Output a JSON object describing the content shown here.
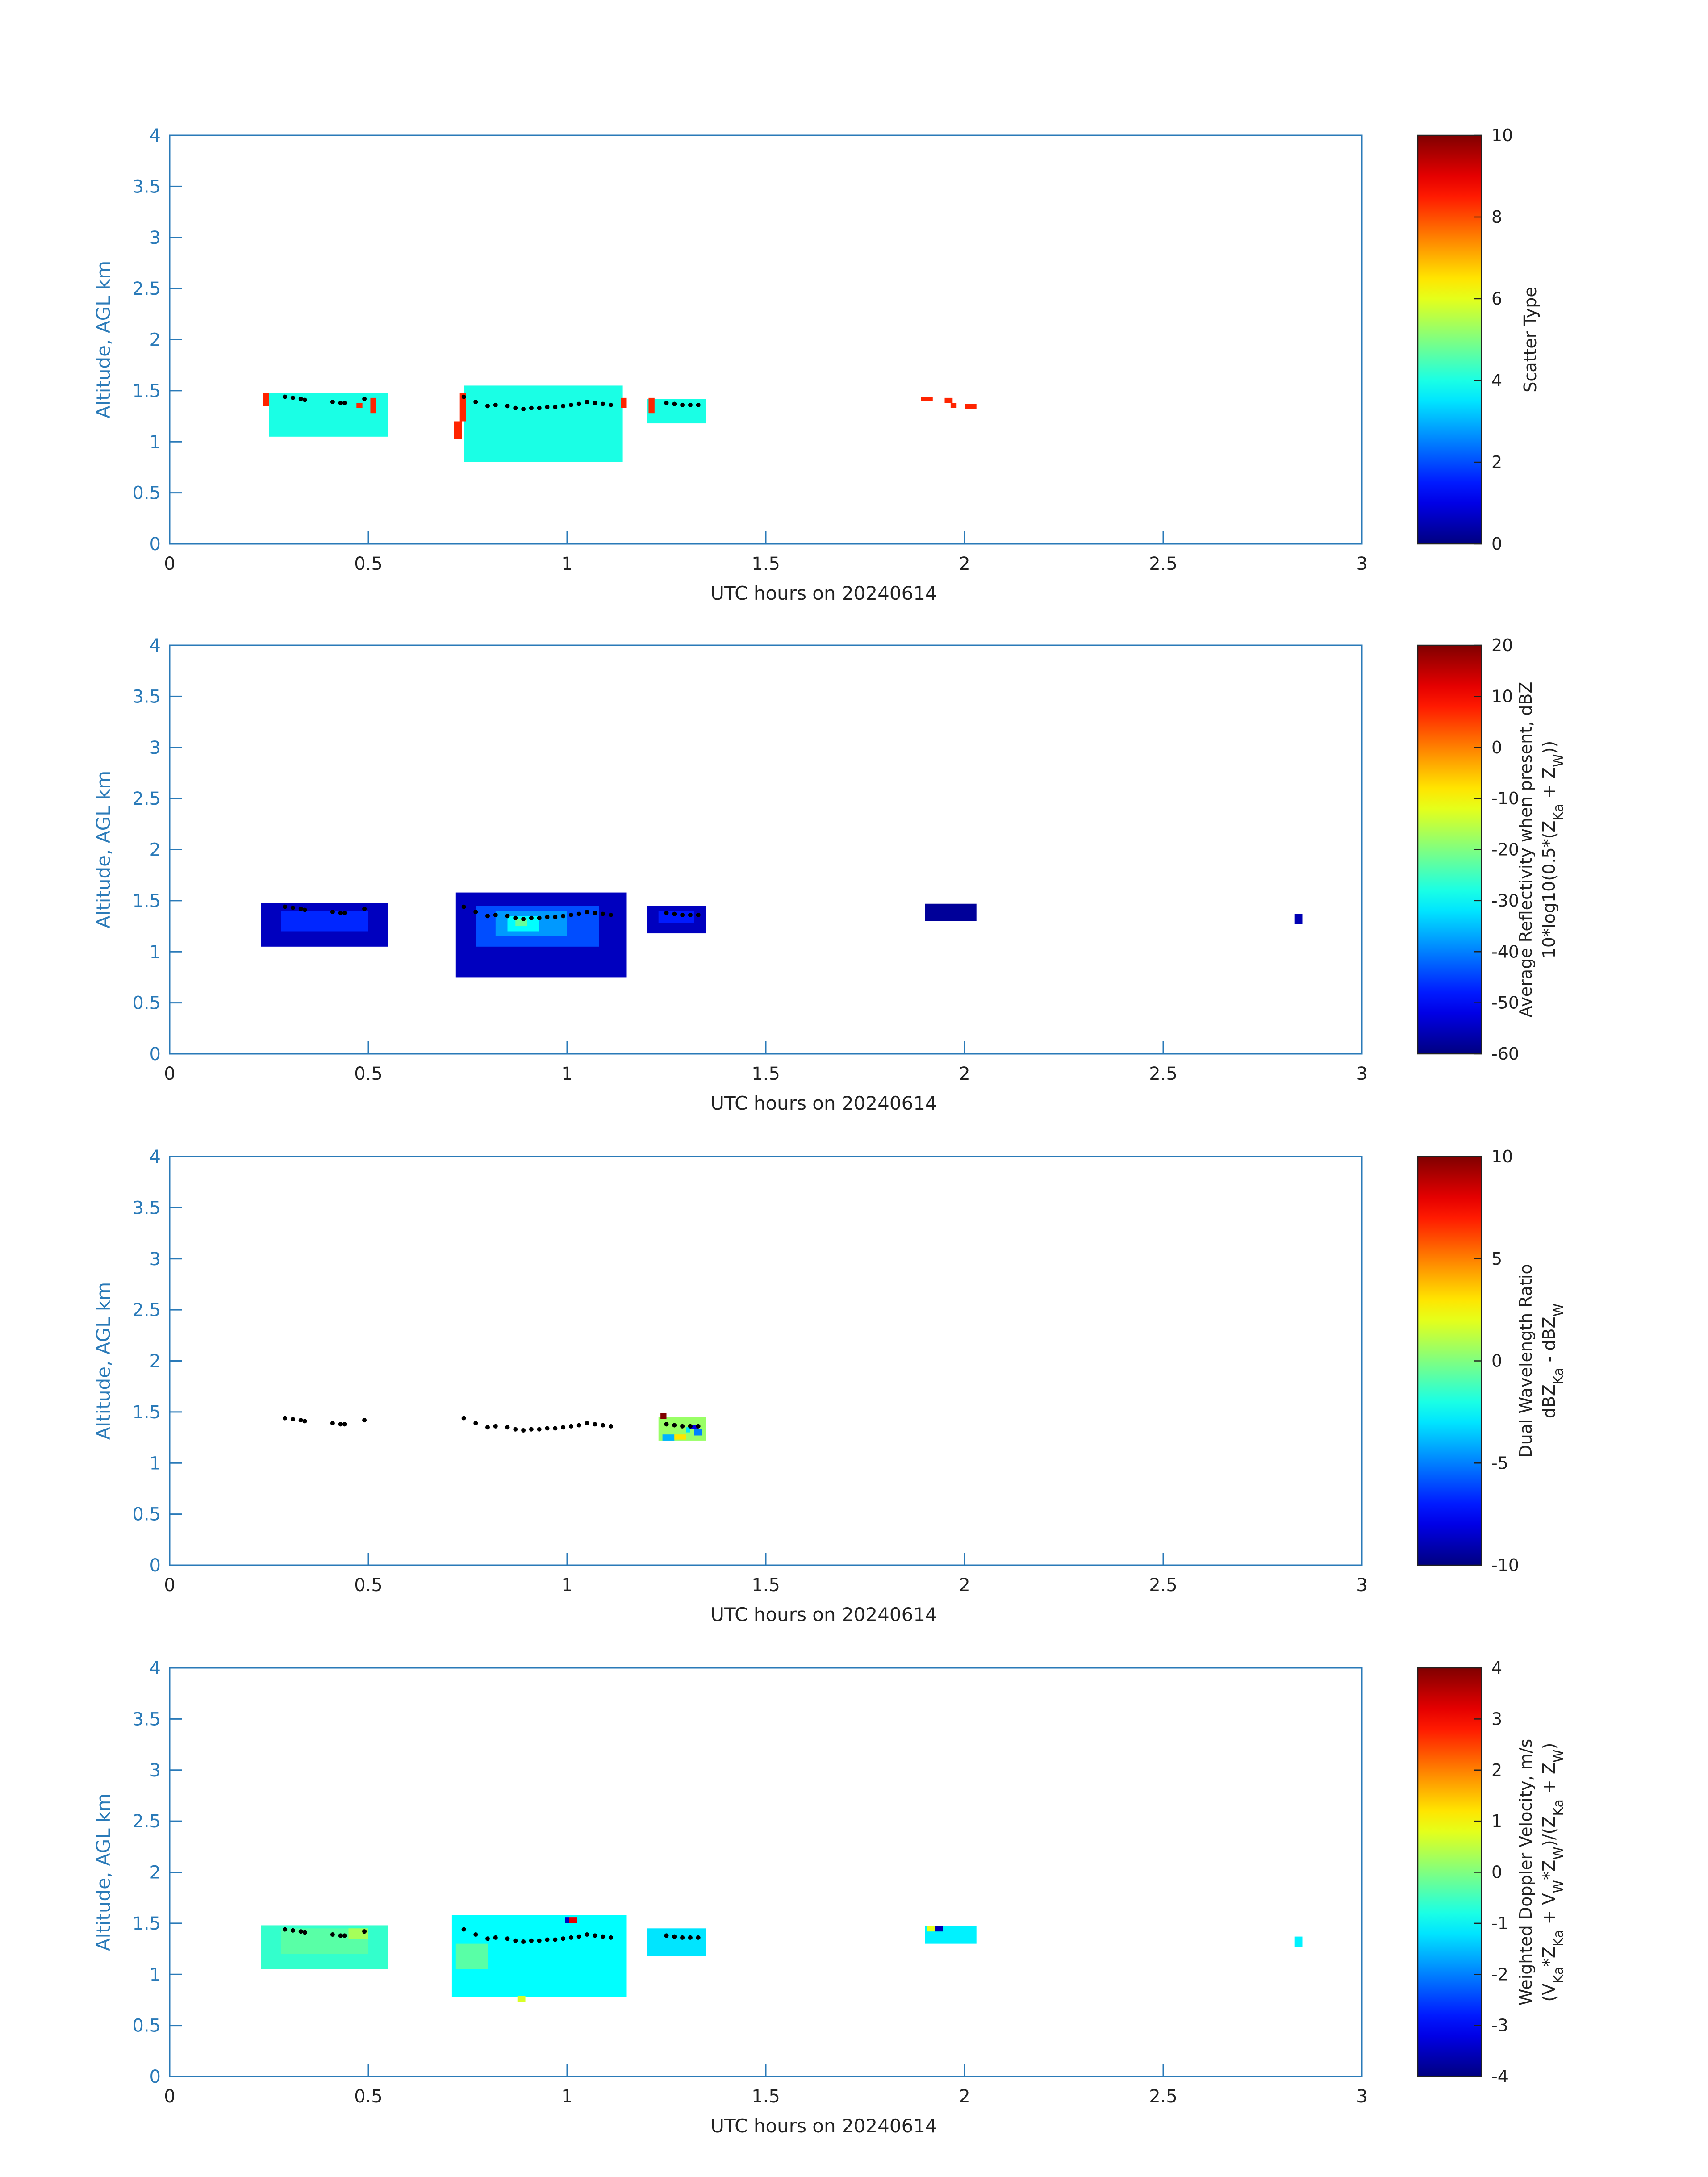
{
  "chart_data": [
    {
      "type": "heatmap",
      "xlabel": "UTC hours on 20240614",
      "ylabel": "Altitude, AGL km",
      "xlim": [
        0,
        3
      ],
      "ylim": [
        0,
        4
      ],
      "xticks": [
        "0",
        "0.5",
        "1",
        "1.5",
        "2",
        "2.5",
        "3"
      ],
      "yticks": [
        "0",
        "0.5",
        "1",
        "1.5",
        "2",
        "2.5",
        "3",
        "3.5",
        "4"
      ],
      "colorbar": {
        "label_lines": [
          "Scatter Type"
        ],
        "range": [
          0,
          10
        ],
        "ticks": [
          "0",
          "2",
          "4",
          "6",
          "8",
          "10"
        ]
      },
      "regions": [
        {
          "x": [
            0.25,
            0.55
          ],
          "y": [
            1.05,
            1.48
          ],
          "value": 4,
          "comment_color": "#2ef5d8"
        },
        {
          "x": [
            0.74,
            1.14
          ],
          "y": [
            0.8,
            1.55
          ],
          "value": 4
        },
        {
          "x": [
            1.2,
            1.35
          ],
          "y": [
            1.18,
            1.42
          ],
          "value": 4
        }
      ],
      "cells": [
        {
          "x": [
            0.235,
            0.25
          ],
          "y": [
            1.35,
            1.48
          ],
          "value": 8.4
        },
        {
          "x": [
            0.715,
            0.735
          ],
          "y": [
            1.03,
            1.2
          ],
          "value": 8.4
        },
        {
          "x": [
            0.73,
            0.745
          ],
          "y": [
            1.2,
            1.48
          ],
          "value": 8.4
        },
        {
          "x": [
            0.47,
            0.485
          ],
          "y": [
            1.33,
            1.38
          ],
          "value": 8.4
        },
        {
          "x": [
            0.505,
            0.52
          ],
          "y": [
            1.28,
            1.43
          ],
          "value": 8.4
        },
        {
          "x": [
            1.135,
            1.15
          ],
          "y": [
            1.33,
            1.43
          ],
          "value": 8.4
        },
        {
          "x": [
            1.205,
            1.22
          ],
          "y": [
            1.28,
            1.43
          ],
          "value": 8.4
        },
        {
          "x": [
            1.89,
            1.92
          ],
          "y": [
            1.4,
            1.44
          ],
          "value": 8.4
        },
        {
          "x": [
            1.95,
            1.97
          ],
          "y": [
            1.38,
            1.43
          ],
          "value": 8.4
        },
        {
          "x": [
            1.965,
            1.98
          ],
          "y": [
            1.33,
            1.38
          ],
          "value": 8.4
        },
        {
          "x": [
            2.0,
            2.03
          ],
          "y": [
            1.32,
            1.37
          ],
          "value": 8.4
        }
      ],
      "cloud_base_dots": [
        [
          0.29,
          1.44
        ],
        [
          0.31,
          1.43
        ],
        [
          0.33,
          1.42
        ],
        [
          0.34,
          1.41
        ],
        [
          0.41,
          1.39
        ],
        [
          0.43,
          1.38
        ],
        [
          0.44,
          1.38
        ],
        [
          0.49,
          1.42
        ],
        [
          0.74,
          1.44
        ],
        [
          0.77,
          1.39
        ],
        [
          0.8,
          1.35
        ],
        [
          0.82,
          1.36
        ],
        [
          0.85,
          1.35
        ],
        [
          0.87,
          1.33
        ],
        [
          0.89,
          1.32
        ],
        [
          0.91,
          1.33
        ],
        [
          0.93,
          1.33
        ],
        [
          0.95,
          1.34
        ],
        [
          0.97,
          1.34
        ],
        [
          0.99,
          1.35
        ],
        [
          1.01,
          1.36
        ],
        [
          1.03,
          1.37
        ],
        [
          1.05,
          1.39
        ],
        [
          1.07,
          1.38
        ],
        [
          1.09,
          1.37
        ],
        [
          1.11,
          1.36
        ],
        [
          1.25,
          1.38
        ],
        [
          1.27,
          1.37
        ],
        [
          1.29,
          1.36
        ],
        [
          1.31,
          1.36
        ],
        [
          1.33,
          1.36
        ]
      ]
    },
    {
      "type": "heatmap",
      "xlabel": "UTC hours on 20240614",
      "ylabel": "Altitude, AGL km",
      "xlim": [
        0,
        3
      ],
      "ylim": [
        0,
        4
      ],
      "xticks": [
        "0",
        "0.5",
        "1",
        "1.5",
        "2",
        "2.5",
        "3"
      ],
      "yticks": [
        "0",
        "0.5",
        "1",
        "1.5",
        "2",
        "2.5",
        "3",
        "3.5",
        "4"
      ],
      "colorbar": {
        "label_lines": [
          "Average Reflectivity when present, dBZ",
          "10*log10(0.5*(Z_Ka + Z_W))"
        ],
        "range": [
          -60,
          20
        ],
        "ticks": [
          "-60",
          "-50",
          "-40",
          "-30",
          "-20",
          "-10",
          "0",
          "10",
          "20"
        ]
      },
      "regions": [
        {
          "x": [
            0.23,
            0.55
          ],
          "y": [
            1.05,
            1.48
          ],
          "value": -55
        },
        {
          "x": [
            0.72,
            1.15
          ],
          "y": [
            0.75,
            1.58
          ],
          "value": -55
        },
        {
          "x": [
            1.2,
            1.35
          ],
          "y": [
            1.18,
            1.45
          ],
          "value": -55
        },
        {
          "x": [
            1.9,
            2.03
          ],
          "y": [
            1.3,
            1.47
          ],
          "value": -58
        },
        {
          "x": [
            2.83,
            2.85
          ],
          "y": [
            1.27,
            1.37
          ],
          "value": -56
        }
      ],
      "cells": [
        {
          "x": [
            0.28,
            0.5
          ],
          "y": [
            1.2,
            1.4
          ],
          "value": -47
        },
        {
          "x": [
            0.77,
            1.08
          ],
          "y": [
            1.05,
            1.45
          ],
          "value": -44
        },
        {
          "x": [
            0.82,
            1.0
          ],
          "y": [
            1.15,
            1.4
          ],
          "value": -38
        },
        {
          "x": [
            0.85,
            0.93
          ],
          "y": [
            1.2,
            1.35
          ],
          "value": -30
        },
        {
          "x": [
            0.87,
            0.9
          ],
          "y": [
            1.25,
            1.32
          ],
          "value": -22
        },
        {
          "x": [
            1.23,
            1.32
          ],
          "y": [
            1.28,
            1.4
          ],
          "value": -48
        }
      ],
      "cloud_base_dots": [
        [
          0.29,
          1.44
        ],
        [
          0.31,
          1.43
        ],
        [
          0.33,
          1.42
        ],
        [
          0.34,
          1.41
        ],
        [
          0.41,
          1.39
        ],
        [
          0.43,
          1.38
        ],
        [
          0.44,
          1.38
        ],
        [
          0.49,
          1.42
        ],
        [
          0.74,
          1.44
        ],
        [
          0.77,
          1.39
        ],
        [
          0.8,
          1.35
        ],
        [
          0.82,
          1.36
        ],
        [
          0.85,
          1.35
        ],
        [
          0.87,
          1.33
        ],
        [
          0.89,
          1.32
        ],
        [
          0.91,
          1.33
        ],
        [
          0.93,
          1.33
        ],
        [
          0.95,
          1.34
        ],
        [
          0.97,
          1.34
        ],
        [
          0.99,
          1.35
        ],
        [
          1.01,
          1.36
        ],
        [
          1.03,
          1.37
        ],
        [
          1.05,
          1.39
        ],
        [
          1.07,
          1.38
        ],
        [
          1.09,
          1.37
        ],
        [
          1.11,
          1.36
        ],
        [
          1.25,
          1.38
        ],
        [
          1.27,
          1.37
        ],
        [
          1.29,
          1.36
        ],
        [
          1.31,
          1.36
        ],
        [
          1.33,
          1.36
        ]
      ]
    },
    {
      "type": "heatmap",
      "xlabel": "UTC hours on 20240614",
      "ylabel": "Altitude, AGL km",
      "xlim": [
        0,
        3
      ],
      "ylim": [
        0,
        4
      ],
      "xticks": [
        "0",
        "0.5",
        "1",
        "1.5",
        "2",
        "2.5",
        "3"
      ],
      "yticks": [
        "0",
        "0.5",
        "1",
        "1.5",
        "2",
        "2.5",
        "3",
        "3.5",
        "4"
      ],
      "colorbar": {
        "label_lines": [
          "Dual Wavelength Ratio",
          "dBZ_Ka - dBZ_W"
        ],
        "range": [
          -10,
          10
        ],
        "ticks": [
          "-10",
          "-5",
          "0",
          "5",
          "10"
        ]
      },
      "regions": [
        {
          "x": [
            1.23,
            1.35
          ],
          "y": [
            1.22,
            1.45
          ],
          "value": 0.5
        }
      ],
      "cells": [
        {
          "x": [
            1.235,
            1.25
          ],
          "y": [
            1.43,
            1.49
          ],
          "value": 10
        },
        {
          "x": [
            1.24,
            1.27
          ],
          "y": [
            1.22,
            1.28
          ],
          "value": -4
        },
        {
          "x": [
            1.3,
            1.31
          ],
          "y": [
            1.3,
            1.35
          ],
          "value": -3
        },
        {
          "x": [
            1.32,
            1.34
          ],
          "y": [
            1.27,
            1.33
          ],
          "value": -5
        },
        {
          "x": [
            1.31,
            1.33
          ],
          "y": [
            1.33,
            1.37
          ],
          "value": -8
        },
        {
          "x": [
            1.27,
            1.3
          ],
          "y": [
            1.23,
            1.28
          ],
          "value": 3
        }
      ],
      "cloud_base_dots": [
        [
          0.29,
          1.44
        ],
        [
          0.31,
          1.43
        ],
        [
          0.33,
          1.42
        ],
        [
          0.34,
          1.41
        ],
        [
          0.41,
          1.39
        ],
        [
          0.43,
          1.38
        ],
        [
          0.44,
          1.38
        ],
        [
          0.49,
          1.42
        ],
        [
          0.74,
          1.44
        ],
        [
          0.77,
          1.39
        ],
        [
          0.8,
          1.35
        ],
        [
          0.82,
          1.36
        ],
        [
          0.85,
          1.35
        ],
        [
          0.87,
          1.33
        ],
        [
          0.89,
          1.32
        ],
        [
          0.91,
          1.33
        ],
        [
          0.93,
          1.33
        ],
        [
          0.95,
          1.34
        ],
        [
          0.97,
          1.34
        ],
        [
          0.99,
          1.35
        ],
        [
          1.01,
          1.36
        ],
        [
          1.03,
          1.37
        ],
        [
          1.05,
          1.39
        ],
        [
          1.07,
          1.38
        ],
        [
          1.09,
          1.37
        ],
        [
          1.11,
          1.36
        ],
        [
          1.25,
          1.38
        ],
        [
          1.27,
          1.37
        ],
        [
          1.29,
          1.36
        ],
        [
          1.31,
          1.36
        ],
        [
          1.33,
          1.36
        ]
      ]
    },
    {
      "type": "heatmap",
      "xlabel": "UTC hours on 20240614",
      "ylabel": "Altitude, AGL km",
      "xlim": [
        0,
        3
      ],
      "ylim": [
        0,
        4
      ],
      "xticks": [
        "0",
        "0.5",
        "1",
        "1.5",
        "2",
        "2.5",
        "3"
      ],
      "yticks": [
        "0",
        "0.5",
        "1",
        "1.5",
        "2",
        "2.5",
        "3",
        "3.5",
        "4"
      ],
      "colorbar": {
        "label_lines": [
          "Weighted Doppler Velocity, m/s",
          "(V_Ka*Z_Ka + V_W*Z_W)/(Z_Ka + Z_W)"
        ],
        "range": [
          -4,
          4
        ],
        "ticks": [
          "-4",
          "-3",
          "-2",
          "-1",
          "0",
          "1",
          "2",
          "3",
          "4"
        ]
      },
      "regions": [
        {
          "x": [
            0.23,
            0.55
          ],
          "y": [
            1.05,
            1.48
          ],
          "value": -0.6
        },
        {
          "x": [
            0.71,
            1.15
          ],
          "y": [
            0.78,
            1.58
          ],
          "value": -1.0
        },
        {
          "x": [
            1.2,
            1.35
          ],
          "y": [
            1.18,
            1.45
          ],
          "value": -1.2
        },
        {
          "x": [
            1.9,
            2.03
          ],
          "y": [
            1.3,
            1.47
          ],
          "value": -1.1
        },
        {
          "x": [
            2.83,
            2.85
          ],
          "y": [
            1.27,
            1.37
          ],
          "value": -1.1
        }
      ],
      "cells": [
        {
          "x": [
            0.28,
            0.5
          ],
          "y": [
            1.2,
            1.45
          ],
          "value": -0.3
        },
        {
          "x": [
            0.72,
            0.8
          ],
          "y": [
            1.05,
            1.3
          ],
          "value": -0.3
        },
        {
          "x": [
            0.45,
            0.5
          ],
          "y": [
            1.35,
            1.45
          ],
          "value": 0.3
        },
        {
          "x": [
            0.875,
            0.895
          ],
          "y": [
            0.73,
            0.79
          ],
          "value": 0.7
        },
        {
          "x": [
            0.995,
            1.005
          ],
          "y": [
            1.5,
            1.56
          ],
          "value": -3.5
        },
        {
          "x": [
            1.005,
            1.025
          ],
          "y": [
            1.5,
            1.56
          ],
          "value": 3.2
        },
        {
          "x": [
            1.925,
            1.945
          ],
          "y": [
            1.42,
            1.47
          ],
          "value": -3.6
        },
        {
          "x": [
            1.905,
            1.925
          ],
          "y": [
            1.42,
            1.47
          ],
          "value": 0.8
        }
      ],
      "cloud_base_dots": [
        [
          0.29,
          1.44
        ],
        [
          0.31,
          1.43
        ],
        [
          0.33,
          1.42
        ],
        [
          0.34,
          1.41
        ],
        [
          0.41,
          1.39
        ],
        [
          0.43,
          1.38
        ],
        [
          0.44,
          1.38
        ],
        [
          0.49,
          1.42
        ],
        [
          0.74,
          1.44
        ],
        [
          0.77,
          1.39
        ],
        [
          0.8,
          1.35
        ],
        [
          0.82,
          1.36
        ],
        [
          0.85,
          1.35
        ],
        [
          0.87,
          1.33
        ],
        [
          0.89,
          1.32
        ],
        [
          0.91,
          1.33
        ],
        [
          0.93,
          1.33
        ],
        [
          0.95,
          1.34
        ],
        [
          0.97,
          1.34
        ],
        [
          0.99,
          1.35
        ],
        [
          1.01,
          1.36
        ],
        [
          1.03,
          1.37
        ],
        [
          1.05,
          1.39
        ],
        [
          1.07,
          1.38
        ],
        [
          1.09,
          1.37
        ],
        [
          1.11,
          1.36
        ],
        [
          1.25,
          1.38
        ],
        [
          1.27,
          1.37
        ],
        [
          1.29,
          1.36
        ],
        [
          1.31,
          1.36
        ],
        [
          1.33,
          1.36
        ]
      ]
    }
  ]
}
